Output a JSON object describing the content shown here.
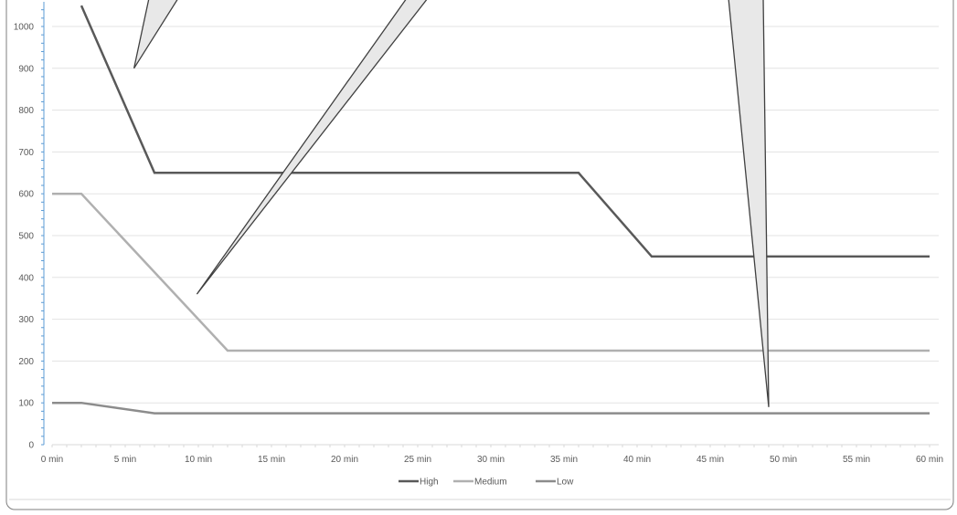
{
  "chart_data": {
    "type": "line",
    "x": [
      0,
      2,
      7,
      12,
      36,
      41,
      60
    ],
    "x_ticks": [
      0,
      5,
      10,
      15,
      20,
      25,
      30,
      35,
      40,
      45,
      50,
      55,
      60
    ],
    "x_tick_labels": [
      "0 min",
      "5 min",
      "10 min",
      "15 min",
      "20 min",
      "25 min",
      "30 min",
      "35 min",
      "40 min",
      "45 min",
      "50 min",
      "55 min",
      "60 min"
    ],
    "y_ticks": [
      0,
      100,
      200,
      300,
      400,
      500,
      600,
      700,
      800,
      900,
      1000
    ],
    "y_tick_labels": [
      "0",
      "100",
      "200",
      "300",
      "400",
      "500",
      "600",
      "700",
      "800",
      "900",
      "1000"
    ],
    "xlim": [
      0,
      60
    ],
    "ylim": [
      0,
      1050
    ],
    "grid": true,
    "legend_position": "bottom",
    "series": [
      {
        "name": "High",
        "color": "#595959",
        "points": [
          [
            2,
            1050
          ],
          [
            7,
            650
          ],
          [
            36,
            650
          ],
          [
            41,
            450
          ],
          [
            60,
            450
          ]
        ]
      },
      {
        "name": "Medium",
        "color": "#b0b0b0",
        "points": [
          [
            0,
            600
          ],
          [
            2,
            600
          ],
          [
            12,
            225
          ],
          [
            60,
            225
          ]
        ]
      },
      {
        "name": "Low",
        "color": "#8c8c8c",
        "points": [
          [
            0,
            100
          ],
          [
            2,
            100
          ],
          [
            7,
            75
          ],
          [
            60,
            75
          ]
        ]
      }
    ],
    "callouts": [
      {
        "name": "callout-1",
        "tip": [
          5.6,
          900
        ]
      },
      {
        "name": "callout-2",
        "tip": [
          9.9,
          360
        ]
      },
      {
        "name": "callout-3",
        "tip": [
          49,
          90
        ]
      }
    ]
  }
}
